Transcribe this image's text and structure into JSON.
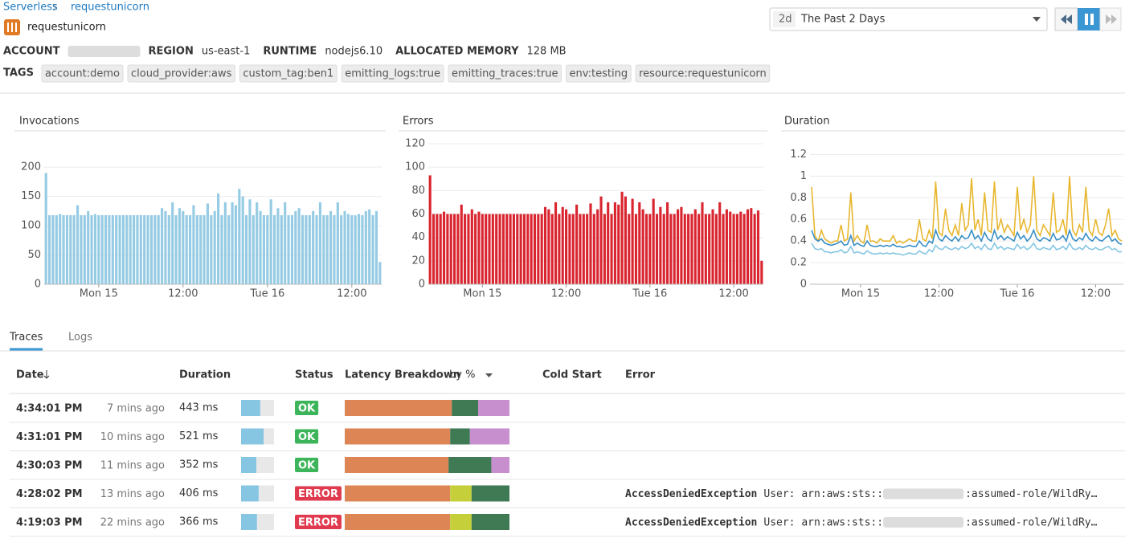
{
  "header": {
    "breadcrumb": [
      "Serverless",
      "requestunicorn"
    ],
    "title": "requestunicorn",
    "info": [
      {
        "label": "ACCOUNT"
      },
      {
        "label": "REGION",
        "value": "us-east-1"
      },
      {
        "label": "RUNTIME",
        "value": "nodejs6.10"
      },
      {
        "label": "ALLOCATED MEMORY",
        "value": "128 MB"
      }
    ],
    "tags_label": "TAGS",
    "tags": [
      "account:demo",
      "cloud_provider:aws",
      "custom_tag:ben1",
      "emitting_logs:true",
      "emitting_traces:true",
      "env:testing",
      "resource:requestunicorn"
    ]
  },
  "time_selector": {
    "short": "2d",
    "label": "The Past 2 Days"
  },
  "chart_data": [
    {
      "type": "bar",
      "title": "Invocations",
      "color": "#96cbe4",
      "grid": true,
      "ylim": [
        0,
        240
      ],
      "yticks": [
        0,
        50,
        100,
        150,
        200
      ],
      "categories": [
        null,
        null,
        null,
        null,
        null,
        null,
        null,
        null,
        null,
        null,
        null,
        null,
        null,
        null,
        null,
        "Mon 15",
        null,
        null,
        null,
        null,
        null,
        null,
        null,
        null,
        null,
        null,
        null,
        null,
        null,
        null,
        null,
        null,
        null,
        null,
        null,
        null,
        null,
        null,
        null,
        "12:00",
        null,
        null,
        null,
        null,
        null,
        null,
        null,
        null,
        null,
        null,
        null,
        null,
        null,
        null,
        null,
        null,
        null,
        null,
        null,
        null,
        null,
        null,
        null,
        "Tue 16",
        null,
        null,
        null,
        null,
        null,
        null,
        null,
        null,
        null,
        null,
        null,
        null,
        null,
        null,
        null,
        null,
        null,
        null,
        null,
        null,
        null,
        null,
        null,
        "12:00",
        null,
        null,
        null,
        null,
        null,
        null,
        null,
        null
      ],
      "values": [
        190,
        118,
        118,
        118,
        120,
        118,
        118,
        118,
        118,
        135,
        118,
        118,
        125,
        118,
        120,
        118,
        118,
        118,
        118,
        118,
        118,
        118,
        118,
        118,
        118,
        118,
        118,
        118,
        118,
        118,
        118,
        118,
        118,
        130,
        125,
        118,
        140,
        118,
        130,
        125,
        118,
        118,
        135,
        118,
        118,
        118,
        138,
        118,
        125,
        155,
        118,
        140,
        118,
        140,
        135,
        163,
        150,
        118,
        145,
        118,
        140,
        125,
        118,
        118,
        145,
        118,
        130,
        118,
        140,
        118,
        118,
        125,
        130,
        118,
        118,
        118,
        125,
        118,
        140,
        118,
        118,
        125,
        118,
        140,
        118,
        125,
        120,
        118,
        118,
        120,
        118,
        125,
        128,
        118,
        125,
        38
      ]
    },
    {
      "type": "bar",
      "title": "Errors",
      "color": "#d9252f",
      "grid": true,
      "ylim": [
        0,
        120
      ],
      "yticks": [
        0,
        20,
        40,
        60,
        80,
        100,
        120
      ],
      "categories": [
        null,
        null,
        null,
        null,
        null,
        null,
        null,
        null,
        null,
        null,
        null,
        null,
        null,
        null,
        null,
        "Mon 15",
        null,
        null,
        null,
        null,
        null,
        null,
        null,
        null,
        null,
        null,
        null,
        null,
        null,
        null,
        null,
        null,
        null,
        null,
        null,
        null,
        null,
        null,
        null,
        "12:00",
        null,
        null,
        null,
        null,
        null,
        null,
        null,
        null,
        null,
        null,
        null,
        null,
        null,
        null,
        null,
        null,
        null,
        null,
        null,
        null,
        null,
        null,
        null,
        "Tue 16",
        null,
        null,
        null,
        null,
        null,
        null,
        null,
        null,
        null,
        null,
        null,
        null,
        null,
        null,
        null,
        null,
        null,
        null,
        null,
        null,
        null,
        null,
        null,
        "12:00",
        null,
        null,
        null,
        null,
        null,
        null,
        null,
        null
      ],
      "values": [
        93,
        60,
        60,
        60,
        62,
        60,
        60,
        60,
        60,
        68,
        60,
        60,
        64,
        60,
        62,
        60,
        60,
        60,
        60,
        60,
        60,
        60,
        60,
        60,
        60,
        60,
        60,
        60,
        60,
        60,
        60,
        60,
        60,
        66,
        64,
        60,
        70,
        60,
        66,
        64,
        60,
        60,
        68,
        60,
        60,
        60,
        69,
        60,
        64,
        75,
        60,
        70,
        60,
        70,
        68,
        79,
        75,
        60,
        73,
        60,
        70,
        64,
        60,
        60,
        73,
        60,
        66,
        60,
        70,
        60,
        60,
        64,
        66,
        60,
        60,
        60,
        64,
        60,
        70,
        60,
        60,
        64,
        60,
        70,
        60,
        64,
        62,
        60,
        60,
        62,
        60,
        64,
        65,
        60,
        63,
        20
      ]
    },
    {
      "type": "line",
      "title": "Duration",
      "grid": true,
      "ylim": [
        0,
        1.3
      ],
      "yticks": [
        0,
        0.2,
        0.4,
        0.6,
        0.8,
        1,
        1.2
      ],
      "categories": [
        null,
        null,
        null,
        null,
        null,
        null,
        null,
        null,
        null,
        null,
        null,
        null,
        null,
        null,
        null,
        "Mon 15",
        null,
        null,
        null,
        null,
        null,
        null,
        null,
        null,
        null,
        null,
        null,
        null,
        null,
        null,
        null,
        null,
        null,
        null,
        null,
        null,
        null,
        null,
        null,
        "12:00",
        null,
        null,
        null,
        null,
        null,
        null,
        null,
        null,
        null,
        null,
        null,
        null,
        null,
        null,
        null,
        null,
        null,
        null,
        null,
        null,
        null,
        null,
        null,
        "Tue 16",
        null,
        null,
        null,
        null,
        null,
        null,
        null,
        null,
        null,
        null,
        null,
        null,
        null,
        null,
        null,
        null,
        null,
        null,
        null,
        null,
        null,
        null,
        null,
        "12:00",
        null,
        null,
        null,
        null,
        null,
        null,
        null,
        null
      ],
      "series": [
        {
          "color": "#e8b730",
          "values": [
            0.9,
            0.45,
            0.4,
            0.5,
            0.42,
            0.4,
            0.38,
            0.4,
            0.4,
            0.55,
            0.4,
            0.42,
            0.85,
            0.4,
            0.45,
            0.4,
            0.38,
            0.55,
            0.4,
            0.4,
            0.38,
            0.42,
            0.4,
            0.4,
            0.4,
            0.45,
            0.38,
            0.4,
            0.38,
            0.4,
            0.42,
            0.4,
            0.4,
            0.6,
            0.42,
            0.4,
            0.5,
            0.42,
            0.95,
            0.48,
            0.45,
            0.7,
            0.5,
            0.45,
            0.55,
            0.45,
            0.75,
            0.5,
            0.55,
            0.98,
            0.5,
            0.6,
            0.45,
            0.85,
            0.5,
            0.48,
            0.95,
            0.5,
            0.6,
            0.48,
            0.55,
            0.5,
            0.45,
            0.9,
            0.5,
            0.6,
            0.48,
            0.55,
            1.0,
            0.5,
            0.45,
            0.55,
            0.5,
            0.45,
            0.85,
            0.48,
            0.5,
            0.6,
            0.45,
            1.0,
            0.5,
            0.45,
            0.55,
            0.48,
            0.9,
            0.5,
            0.45,
            0.6,
            0.48,
            0.45,
            0.55,
            0.7,
            0.45,
            0.5,
            0.42,
            0.4
          ]
        },
        {
          "color": "#3a8fc5",
          "values": [
            0.5,
            0.42,
            0.4,
            0.42,
            0.38,
            0.37,
            0.36,
            0.37,
            0.38,
            0.4,
            0.36,
            0.37,
            0.45,
            0.36,
            0.38,
            0.36,
            0.35,
            0.4,
            0.36,
            0.35,
            0.35,
            0.36,
            0.35,
            0.36,
            0.35,
            0.37,
            0.35,
            0.35,
            0.34,
            0.35,
            0.36,
            0.35,
            0.35,
            0.4,
            0.36,
            0.35,
            0.4,
            0.38,
            0.5,
            0.42,
            0.4,
            0.45,
            0.42,
            0.4,
            0.44,
            0.4,
            0.45,
            0.42,
            0.43,
            0.5,
            0.42,
            0.45,
            0.4,
            0.48,
            0.42,
            0.4,
            0.5,
            0.42,
            0.45,
            0.41,
            0.44,
            0.42,
            0.4,
            0.48,
            0.42,
            0.45,
            0.4,
            0.43,
            0.5,
            0.42,
            0.4,
            0.43,
            0.42,
            0.4,
            0.47,
            0.41,
            0.42,
            0.45,
            0.4,
            0.5,
            0.42,
            0.4,
            0.43,
            0.41,
            0.47,
            0.42,
            0.4,
            0.44,
            0.41,
            0.4,
            0.43,
            0.45,
            0.4,
            0.42,
            0.38,
            0.37
          ]
        },
        {
          "color": "#86c6e3",
          "values": [
            0.38,
            0.33,
            0.32,
            0.33,
            0.3,
            0.3,
            0.29,
            0.3,
            0.3,
            0.32,
            0.29,
            0.3,
            0.35,
            0.29,
            0.3,
            0.29,
            0.28,
            0.31,
            0.29,
            0.28,
            0.28,
            0.29,
            0.28,
            0.29,
            0.28,
            0.29,
            0.28,
            0.28,
            0.27,
            0.28,
            0.29,
            0.28,
            0.28,
            0.31,
            0.29,
            0.28,
            0.32,
            0.3,
            0.36,
            0.33,
            0.32,
            0.35,
            0.33,
            0.32,
            0.34,
            0.32,
            0.35,
            0.33,
            0.34,
            0.38,
            0.33,
            0.35,
            0.32,
            0.37,
            0.33,
            0.32,
            0.38,
            0.33,
            0.35,
            0.32,
            0.34,
            0.33,
            0.32,
            0.37,
            0.33,
            0.35,
            0.32,
            0.34,
            0.38,
            0.33,
            0.32,
            0.34,
            0.33,
            0.32,
            0.36,
            0.32,
            0.33,
            0.35,
            0.32,
            0.38,
            0.33,
            0.32,
            0.34,
            0.32,
            0.36,
            0.33,
            0.32,
            0.34,
            0.32,
            0.32,
            0.34,
            0.35,
            0.32,
            0.33,
            0.3,
            0.3
          ]
        }
      ]
    }
  ],
  "tabs": [
    "Traces",
    "Logs"
  ],
  "traces": {
    "columns": [
      "Date",
      "Duration",
      "Status",
      "Latency Breakdown",
      "Cold Start",
      "Error"
    ],
    "breakdown_mode": "by %",
    "rows": [
      {
        "time": "4:34:01 PM",
        "ago": "7 mins ago",
        "duration": 443,
        "duration_label": "443 ms",
        "status": "OK",
        "latency": [
          65,
          16,
          19
        ],
        "latency_colors": [
          "#dd8555",
          "#3f7a55",
          "#c88fcf"
        ]
      },
      {
        "time": "4:31:01 PM",
        "ago": "10 mins ago",
        "duration": 521,
        "duration_label": "521 ms",
        "status": "OK",
        "latency": [
          64,
          12,
          24
        ],
        "latency_colors": [
          "#dd8555",
          "#3f7a55",
          "#c88fcf"
        ]
      },
      {
        "time": "4:30:03 PM",
        "ago": "11 mins ago",
        "duration": 352,
        "duration_label": "352 ms",
        "status": "OK",
        "latency": [
          63,
          26,
          11
        ],
        "latency_colors": [
          "#dd8555",
          "#3f7a55",
          "#c88fcf"
        ]
      },
      {
        "time": "4:28:02 PM",
        "ago": "13 mins ago",
        "duration": 406,
        "duration_label": "406 ms",
        "status": "ERROR",
        "latency": [
          64,
          13,
          23
        ],
        "latency_colors": [
          "#dd8555",
          "#c4cf3a",
          "#3f7a55"
        ],
        "error": {
          "type": "AccessDeniedException",
          "prefix": "User: arn:aws:sts::",
          "suffix": ":assumed-role/WildRy…"
        }
      },
      {
        "time": "4:19:03 PM",
        "ago": "22 mins ago",
        "duration": 366,
        "duration_label": "366 ms",
        "status": "ERROR",
        "latency": [
          64,
          13,
          23
        ],
        "latency_colors": [
          "#dd8555",
          "#c4cf3a",
          "#3f7a55"
        ],
        "error": {
          "type": "AccessDeniedException",
          "prefix": "User: arn:aws:sts::",
          "suffix": ":assumed-role/WildRy…"
        }
      }
    ]
  }
}
